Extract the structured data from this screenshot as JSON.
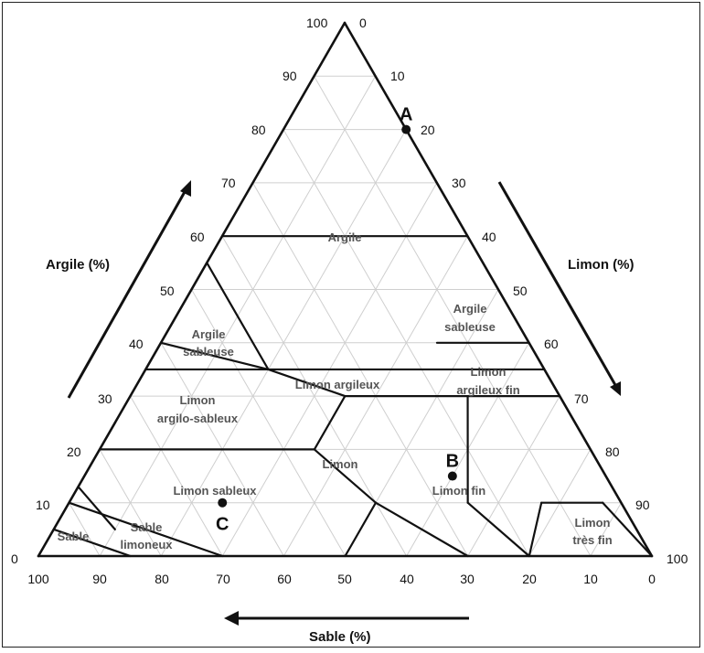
{
  "axes": {
    "clay": {
      "title": "Argile (%)",
      "ticks": [
        "0",
        "10",
        "20",
        "30",
        "40",
        "50",
        "60",
        "70",
        "80",
        "90",
        "100"
      ]
    },
    "silt": {
      "title": "Limon (%)",
      "ticks": [
        "0",
        "10",
        "20",
        "30",
        "40",
        "50",
        "60",
        "70",
        "80",
        "90",
        "100"
      ]
    },
    "sand": {
      "title": "Sable (%)",
      "ticks": [
        "100",
        "90",
        "80",
        "70",
        "60",
        "50",
        "40",
        "30",
        "20",
        "10",
        "0"
      ]
    }
  },
  "regions": [
    {
      "id": "argile",
      "lines": [
        "Argile"
      ]
    },
    {
      "id": "argile-sableuse-left",
      "lines": [
        "Argile",
        "sableuse"
      ]
    },
    {
      "id": "argile-sableuse-right",
      "lines": [
        "Argile",
        "sableuse"
      ]
    },
    {
      "id": "limon-argileux",
      "lines": [
        "Limon argileux"
      ]
    },
    {
      "id": "limon-argileux-fin",
      "lines": [
        "Limon",
        "argileux fin"
      ]
    },
    {
      "id": "limon-argilo-sableux",
      "lines": [
        "Limon",
        "argilo-sableux"
      ]
    },
    {
      "id": "limon",
      "lines": [
        "Limon"
      ]
    },
    {
      "id": "limon-sableux",
      "lines": [
        "Limon sableux"
      ]
    },
    {
      "id": "limon-fin",
      "lines": [
        "Limon fin"
      ]
    },
    {
      "id": "limon-tres-fin",
      "lines": [
        "Limon",
        "très fin"
      ]
    },
    {
      "id": "sable",
      "lines": [
        "Sable"
      ]
    },
    {
      "id": "sable-limoneux",
      "lines": [
        "Sable",
        "limoneux"
      ]
    }
  ],
  "points": [
    {
      "label": "A",
      "clay": 80,
      "silt": 20,
      "sand": 0
    },
    {
      "label": "B",
      "clay": 15,
      "silt": 60,
      "sand": 25
    },
    {
      "label": "C",
      "clay": 10,
      "silt": 25,
      "sand": 65
    }
  ],
  "colors": {
    "grid": "#cfcfcf",
    "boundary": "#111111",
    "region_text": "#555555"
  }
}
